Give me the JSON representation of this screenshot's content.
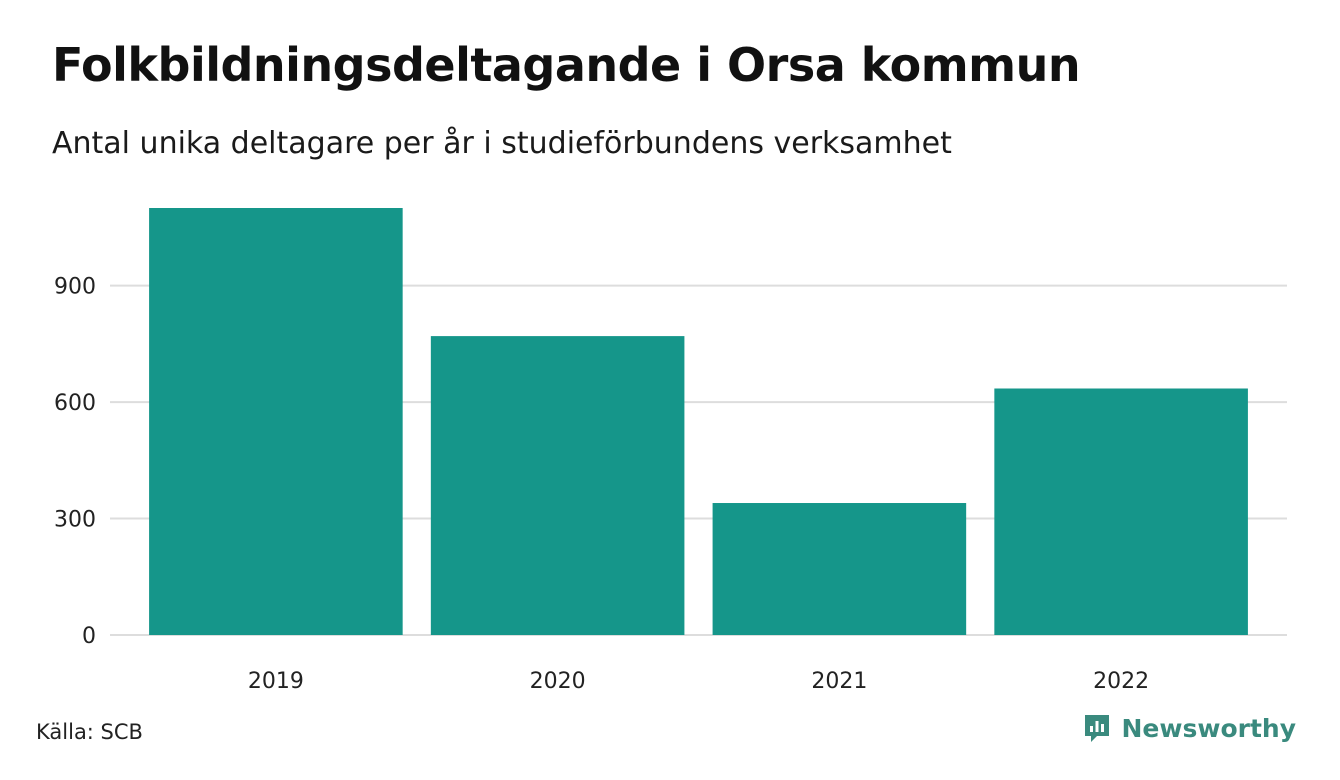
{
  "header": {
    "title": "Folkbildningsdeltagande i Orsa kommun",
    "subtitle": "Antal unika deltagare per år i studieförbundens verksamhet"
  },
  "footer": {
    "source": "Källa: SCB",
    "brand": "Newsworthy"
  },
  "colors": {
    "bar": "#15968a",
    "grid": "#dddddd",
    "brand": "#3a8a7e"
  },
  "chart_data": {
    "type": "bar",
    "categories": [
      "2019",
      "2020",
      "2021",
      "2022"
    ],
    "values": [
      1100,
      770,
      340,
      635
    ],
    "ylim": [
      0,
      1100
    ],
    "yticks": [
      0,
      300,
      600,
      900
    ],
    "grid": true
  }
}
